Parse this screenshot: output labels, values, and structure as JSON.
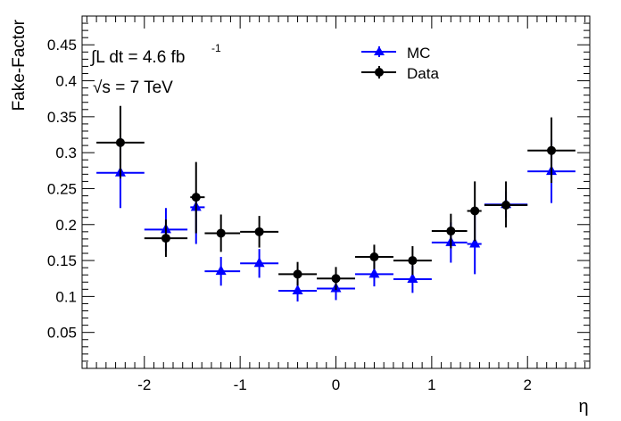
{
  "chart_data": {
    "type": "scatter",
    "xlabel": "η",
    "ylabel": "Fake-Factor",
    "xlim": [
      -2.65,
      2.65
    ],
    "ylim": [
      0,
      0.49
    ],
    "x_ticks": [
      -2,
      -1,
      0,
      1,
      2
    ],
    "x_tick_labels": [
      "-2",
      "-1",
      "0",
      "1",
      "2"
    ],
    "y_ticks": [
      0.05,
      0.1,
      0.15,
      0.2,
      0.25,
      0.3,
      0.35,
      0.4,
      0.45
    ],
    "y_tick_labels": [
      "0.05",
      "0.1",
      "0.15",
      "0.2",
      "0.25",
      "0.3",
      "0.35",
      "0.4",
      "0.45"
    ],
    "annotations": {
      "lumi": "∫L dt = 4.6 fb",
      "lumi_exp": "-1",
      "energy": "√s = 7 TeV"
    },
    "legend": {
      "position": "top-center"
    },
    "series": [
      {
        "name": "MC",
        "color": "#0000ff",
        "marker": "triangle",
        "bins": [
          {
            "x": -2.25,
            "xlo": -2.5,
            "xhi": -2.0,
            "y": 0.272,
            "ylo": 0.223,
            "yhi": 0.322
          },
          {
            "x": -1.775,
            "xlo": -2.0,
            "xhi": -1.55,
            "y": 0.193,
            "ylo": 0.163,
            "yhi": 0.223
          },
          {
            "x": -1.46,
            "xlo": -1.52,
            "xhi": -1.37,
            "y": 0.224,
            "ylo": 0.173,
            "yhi": 0.24
          },
          {
            "x": -1.2,
            "xlo": -1.37,
            "xhi": -1.0,
            "y": 0.135,
            "ylo": 0.115,
            "yhi": 0.155
          },
          {
            "x": -0.8,
            "xlo": -1.0,
            "xhi": -0.6,
            "y": 0.146,
            "ylo": 0.126,
            "yhi": 0.166
          },
          {
            "x": -0.4,
            "xlo": -0.6,
            "xhi": -0.2,
            "y": 0.108,
            "ylo": 0.093,
            "yhi": 0.121
          },
          {
            "x": 0.0,
            "xlo": -0.2,
            "xhi": 0.2,
            "y": 0.111,
            "ylo": 0.095,
            "yhi": 0.127
          },
          {
            "x": 0.4,
            "xlo": 0.2,
            "xhi": 0.6,
            "y": 0.131,
            "ylo": 0.114,
            "yhi": 0.148
          },
          {
            "x": 0.8,
            "xlo": 0.6,
            "xhi": 1.0,
            "y": 0.124,
            "ylo": 0.105,
            "yhi": 0.143
          },
          {
            "x": 1.2,
            "xlo": 1.0,
            "xhi": 1.37,
            "y": 0.175,
            "ylo": 0.147,
            "yhi": 0.203
          },
          {
            "x": 1.45,
            "xlo": 1.37,
            "xhi": 1.52,
            "y": 0.173,
            "ylo": 0.131,
            "yhi": 0.215
          },
          {
            "x": 1.775,
            "xlo": 1.55,
            "xhi": 2.0,
            "y": 0.228,
            "ylo": 0.21,
            "yhi": 0.246
          },
          {
            "x": 2.25,
            "xlo": 2.0,
            "xhi": 2.5,
            "y": 0.274,
            "ylo": 0.23,
            "yhi": 0.318
          }
        ]
      },
      {
        "name": "Data",
        "color": "#000000",
        "marker": "circle",
        "bins": [
          {
            "x": -2.25,
            "xlo": -2.5,
            "xhi": -2.0,
            "y": 0.314,
            "ylo": 0.264,
            "yhi": 0.365
          },
          {
            "x": -1.775,
            "xlo": -2.0,
            "xhi": -1.55,
            "y": 0.181,
            "ylo": 0.155,
            "yhi": 0.207
          },
          {
            "x": -1.46,
            "xlo": -1.52,
            "xhi": -1.37,
            "y": 0.238,
            "ylo": 0.188,
            "yhi": 0.287
          },
          {
            "x": -1.2,
            "xlo": -1.37,
            "xhi": -1.0,
            "y": 0.188,
            "ylo": 0.162,
            "yhi": 0.214
          },
          {
            "x": -0.8,
            "xlo": -1.0,
            "xhi": -0.6,
            "y": 0.19,
            "ylo": 0.168,
            "yhi": 0.212
          },
          {
            "x": -0.4,
            "xlo": -0.6,
            "xhi": -0.2,
            "y": 0.131,
            "ylo": 0.115,
            "yhi": 0.148
          },
          {
            "x": 0.0,
            "xlo": -0.2,
            "xhi": 0.2,
            "y": 0.125,
            "ylo": 0.109,
            "yhi": 0.141
          },
          {
            "x": 0.4,
            "xlo": 0.2,
            "xhi": 0.6,
            "y": 0.155,
            "ylo": 0.138,
            "yhi": 0.172
          },
          {
            "x": 0.8,
            "xlo": 0.6,
            "xhi": 1.0,
            "y": 0.15,
            "ylo": 0.13,
            "yhi": 0.17
          },
          {
            "x": 1.2,
            "xlo": 1.0,
            "xhi": 1.37,
            "y": 0.191,
            "ylo": 0.167,
            "yhi": 0.215
          },
          {
            "x": 1.45,
            "xlo": 1.37,
            "xhi": 1.52,
            "y": 0.219,
            "ylo": 0.177,
            "yhi": 0.26
          },
          {
            "x": 1.775,
            "xlo": 1.55,
            "xhi": 2.0,
            "y": 0.227,
            "ylo": 0.196,
            "yhi": 0.26
          },
          {
            "x": 2.25,
            "xlo": 2.0,
            "xhi": 2.5,
            "y": 0.303,
            "ylo": 0.258,
            "yhi": 0.349
          }
        ]
      }
    ]
  }
}
